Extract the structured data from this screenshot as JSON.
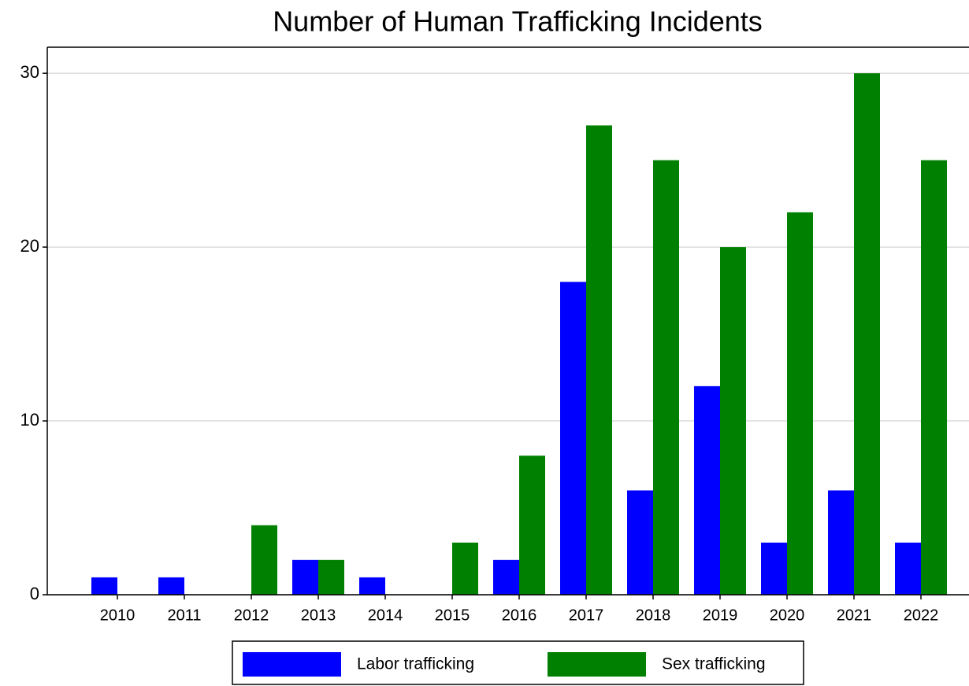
{
  "chart_data": {
    "type": "bar",
    "title": "Number of Human Trafficking Incidents",
    "categories": [
      "2010",
      "2011",
      "2012",
      "2013",
      "2014",
      "2015",
      "2016",
      "2017",
      "2018",
      "2019",
      "2020",
      "2021",
      "2022"
    ],
    "series": [
      {
        "name": "Labor trafficking",
        "color": "#0000ff",
        "values": [
          1,
          1,
          0,
          2,
          1,
          0,
          2,
          18,
          6,
          12,
          3,
          6,
          3
        ]
      },
      {
        "name": "Sex trafficking",
        "color": "#008000",
        "values": [
          0,
          0,
          4,
          2,
          0,
          3,
          8,
          27,
          25,
          20,
          22,
          30,
          25
        ]
      }
    ],
    "ylim": [
      0,
      31.5
    ],
    "yticks": [
      0,
      10,
      20,
      30
    ],
    "grid": true,
    "legend": "bottom"
  }
}
